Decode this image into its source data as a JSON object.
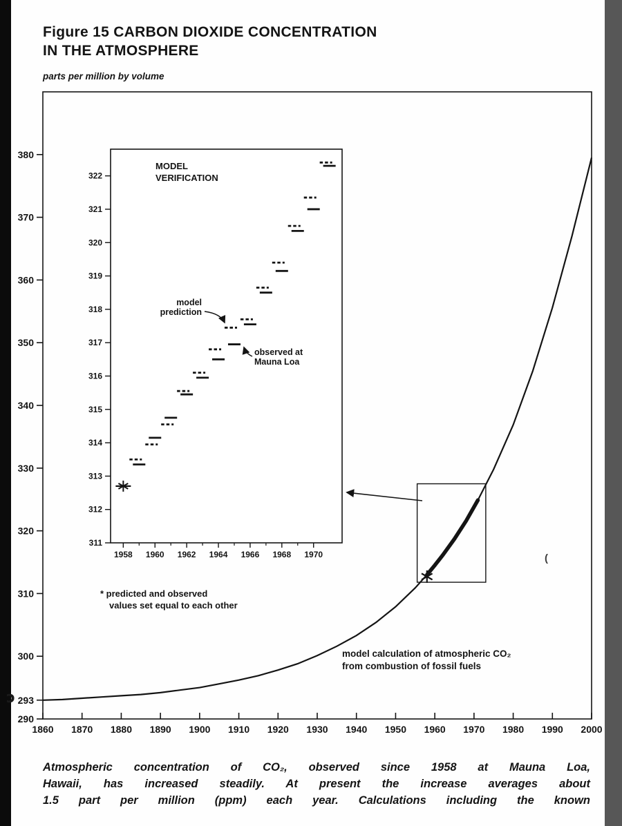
{
  "page": {
    "title_line1": "Figure 15 CARBON DIOXIDE CONCENTRATION",
    "title_line2": "IN THE ATMOSPHERE",
    "caption_lines": [
      "Atmospheric concentration of CO₂, observed since 1958 at Mauna Loa,",
      "Hawaii, has increased steadily. At present the increase averages about",
      "1.5 part per million (ppm) each year. Calculations including the known"
    ],
    "scan_artifacts": [
      "ɔ",
      "("
    ]
  },
  "chart_data": {
    "type": "line",
    "title": "Figure 15 CARBON DIOXIDE CONCENTRATION IN THE ATMOSPHERE",
    "units": "parts per million by volume",
    "x_range": [
      1860,
      2000
    ],
    "y_range_ppm": [
      290,
      390
    ],
    "x_ticks": [
      1860,
      1870,
      1880,
      1890,
      1900,
      1910,
      1920,
      1930,
      1940,
      1950,
      1960,
      1970,
      1980,
      1990,
      2000
    ],
    "y_ticks": [
      290,
      293,
      300,
      310,
      320,
      330,
      340,
      350,
      360,
      370,
      380
    ],
    "grid": false,
    "legend": "none",
    "series": [
      {
        "name": "model calculation of atmospheric CO2 from combustion of fossil fuels",
        "style": "solid",
        "points": [
          [
            1860,
            293.0
          ],
          [
            1865,
            293.1
          ],
          [
            1870,
            293.3
          ],
          [
            1875,
            293.5
          ],
          [
            1880,
            293.7
          ],
          [
            1885,
            293.9
          ],
          [
            1890,
            294.2
          ],
          [
            1895,
            294.6
          ],
          [
            1900,
            295.0
          ],
          [
            1905,
            295.6
          ],
          [
            1910,
            296.2
          ],
          [
            1915,
            296.9
          ],
          [
            1920,
            297.8
          ],
          [
            1925,
            298.8
          ],
          [
            1930,
            300.1
          ],
          [
            1935,
            301.6
          ],
          [
            1940,
            303.3
          ],
          [
            1945,
            305.4
          ],
          [
            1950,
            307.9
          ],
          [
            1955,
            310.9
          ],
          [
            1958,
            313.0
          ],
          [
            1960,
            314.5
          ],
          [
            1962,
            316.1
          ],
          [
            1965,
            318.7
          ],
          [
            1968,
            321.6
          ],
          [
            1971,
            324.9
          ],
          [
            1975,
            329.8
          ],
          [
            1980,
            336.9
          ],
          [
            1985,
            345.5
          ],
          [
            1990,
            355.6
          ],
          [
            1995,
            367.0
          ],
          [
            2000,
            379.5
          ]
        ]
      },
      {
        "name": "period overlapping Mauna Loa observations (drawn thick)",
        "style": "thick",
        "x_span": [
          1958,
          1971
        ]
      }
    ],
    "annotation_model_calc": {
      "lines": [
        "model calculation of atmospheric CO₂",
        "from combustion of fossil fuels"
      ]
    },
    "star_point": {
      "x": 1958,
      "y": 312.7
    },
    "highlight_box": {
      "x1": 1955.5,
      "x2": 1973,
      "y1": 311.8,
      "y2": 327.5
    },
    "inset": {
      "title_lines": [
        "MODEL",
        "VERIFICATION"
      ],
      "x_range": [
        1957.2,
        1971.8
      ],
      "y_range": [
        311,
        322.8
      ],
      "x_ticks": [
        1958,
        1960,
        1962,
        1964,
        1966,
        1968,
        1970
      ],
      "y_ticks": [
        311,
        312,
        313,
        314,
        315,
        316,
        317,
        318,
        319,
        320,
        321,
        322
      ],
      "observed": {
        "label_lines": [
          "observed at",
          "Mauna Loa"
        ],
        "style": "solid",
        "points": [
          [
            1959,
            313.35
          ],
          [
            1960,
            314.15
          ],
          [
            1961,
            314.75
          ],
          [
            1962,
            315.45
          ],
          [
            1963,
            315.95
          ],
          [
            1964,
            316.5
          ],
          [
            1965,
            316.95
          ],
          [
            1966,
            317.55
          ],
          [
            1967,
            318.5
          ],
          [
            1968,
            319.15
          ],
          [
            1969,
            320.35
          ],
          [
            1970,
            321.0
          ],
          [
            1971,
            322.3
          ]
        ]
      },
      "predicted": {
        "label_lines": [
          "model",
          "prediction"
        ],
        "style": "dashed",
        "points": [
          [
            1959,
            313.5
          ],
          [
            1960,
            313.95
          ],
          [
            1961,
            314.55
          ],
          [
            1962,
            315.55
          ],
          [
            1963,
            316.1
          ],
          [
            1964,
            316.8
          ],
          [
            1965,
            317.45
          ],
          [
            1966,
            317.7
          ],
          [
            1967,
            318.65
          ],
          [
            1968,
            319.4
          ],
          [
            1969,
            320.5
          ],
          [
            1970,
            321.35
          ],
          [
            1971,
            322.4
          ]
        ]
      },
      "star_point": {
        "x": 1958,
        "y": 312.7
      },
      "footnote_lines": [
        "* predicted and observed",
        "values set equal to each other"
      ]
    }
  }
}
